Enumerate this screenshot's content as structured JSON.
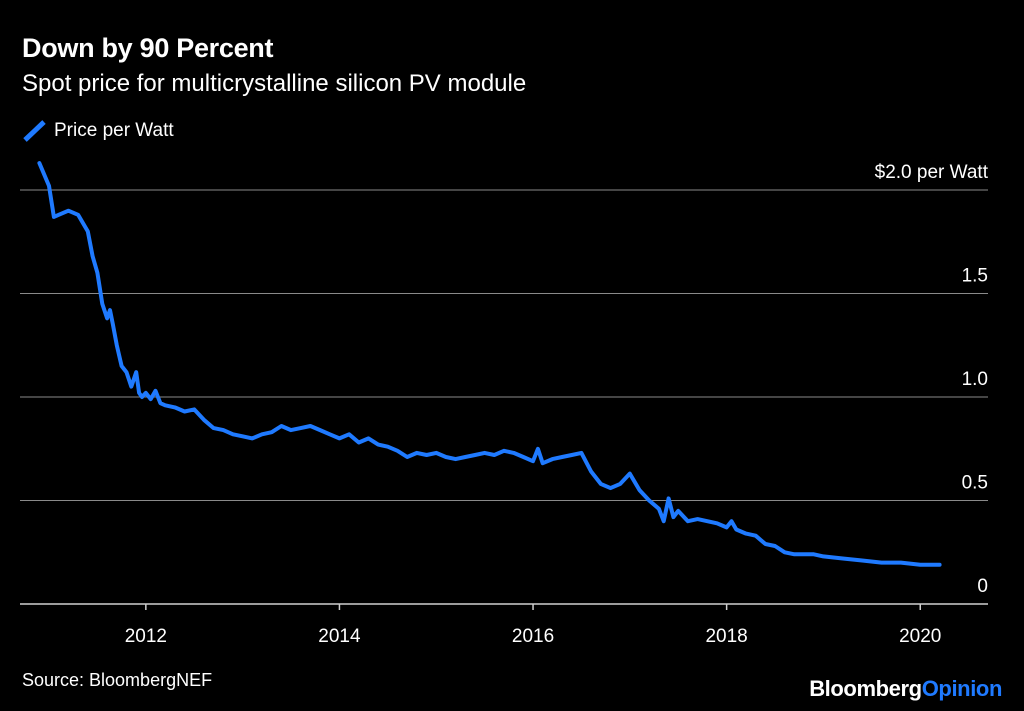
{
  "header": {
    "title": "Down by 90 Percent",
    "subtitle": "Spot price for multicrystalline silicon PV module"
  },
  "legend": {
    "label": "Price per Watt"
  },
  "footer": {
    "source": "Source: BloombergNEF",
    "brand_part1": "Bloomberg",
    "brand_part2": "Opinion"
  },
  "colors": {
    "background": "#000000",
    "line": "#1f7aff",
    "grid": "#8a8a8a"
  },
  "chart_data": {
    "type": "line",
    "title": "Down by 90 Percent",
    "subtitle": "Spot price for multicrystalline silicon PV module",
    "xlabel": "",
    "ylabel": "",
    "xlim": [
      2010.7,
      2020.7
    ],
    "ylim": [
      0,
      2.0
    ],
    "x_ticks": [
      2012,
      2014,
      2016,
      2018,
      2020
    ],
    "x_tick_labels": [
      "2012",
      "2014",
      "2016",
      "2018",
      "2020"
    ],
    "y_ticks": [
      0,
      0.5,
      1.0,
      1.5,
      2.0
    ],
    "y_tick_labels": [
      "0",
      "0.5",
      "1.0",
      "1.5",
      "$2.0 per Watt"
    ],
    "grid": "horizontal",
    "legend_position": "top-left",
    "series": [
      {
        "name": "Price per Watt",
        "color": "#1f7aff",
        "x": [
          2010.9,
          2011.0,
          2011.05,
          2011.1,
          2011.2,
          2011.3,
          2011.4,
          2011.45,
          2011.5,
          2011.55,
          2011.6,
          2011.63,
          2011.66,
          2011.7,
          2011.75,
          2011.8,
          2011.85,
          2011.9,
          2011.93,
          2011.96,
          2012.0,
          2012.05,
          2012.1,
          2012.15,
          2012.2,
          2012.3,
          2012.4,
          2012.5,
          2012.6,
          2012.7,
          2012.8,
          2012.9,
          2013.0,
          2013.1,
          2013.2,
          2013.3,
          2013.4,
          2013.5,
          2013.6,
          2013.7,
          2013.8,
          2013.9,
          2014.0,
          2014.1,
          2014.2,
          2014.3,
          2014.4,
          2014.5,
          2014.6,
          2014.7,
          2014.8,
          2014.9,
          2015.0,
          2015.1,
          2015.2,
          2015.3,
          2015.4,
          2015.5,
          2015.6,
          2015.7,
          2015.8,
          2015.9,
          2016.0,
          2016.05,
          2016.1,
          2016.2,
          2016.3,
          2016.4,
          2016.5,
          2016.6,
          2016.7,
          2016.8,
          2016.9,
          2017.0,
          2017.1,
          2017.2,
          2017.3,
          2017.35,
          2017.4,
          2017.45,
          2017.5,
          2017.6,
          2017.7,
          2017.8,
          2017.9,
          2018.0,
          2018.05,
          2018.1,
          2018.2,
          2018.3,
          2018.4,
          2018.5,
          2018.6,
          2018.7,
          2018.8,
          2018.9,
          2019.0,
          2019.2,
          2019.4,
          2019.6,
          2019.8,
          2020.0,
          2020.2
        ],
        "values": [
          2.13,
          2.02,
          1.87,
          1.88,
          1.9,
          1.88,
          1.8,
          1.68,
          1.6,
          1.45,
          1.38,
          1.42,
          1.35,
          1.25,
          1.15,
          1.12,
          1.05,
          1.12,
          1.02,
          1.0,
          1.02,
          0.99,
          1.03,
          0.97,
          0.96,
          0.95,
          0.93,
          0.94,
          0.89,
          0.85,
          0.84,
          0.82,
          0.81,
          0.8,
          0.82,
          0.83,
          0.86,
          0.84,
          0.85,
          0.86,
          0.84,
          0.82,
          0.8,
          0.82,
          0.78,
          0.8,
          0.77,
          0.76,
          0.74,
          0.71,
          0.73,
          0.72,
          0.73,
          0.71,
          0.7,
          0.71,
          0.72,
          0.73,
          0.72,
          0.74,
          0.73,
          0.71,
          0.69,
          0.75,
          0.68,
          0.7,
          0.71,
          0.72,
          0.73,
          0.64,
          0.58,
          0.56,
          0.58,
          0.63,
          0.55,
          0.5,
          0.46,
          0.4,
          0.51,
          0.42,
          0.45,
          0.4,
          0.41,
          0.4,
          0.39,
          0.37,
          0.4,
          0.36,
          0.34,
          0.33,
          0.29,
          0.28,
          0.25,
          0.24,
          0.24,
          0.24,
          0.23,
          0.22,
          0.21,
          0.2,
          0.2,
          0.19,
          0.19
        ]
      }
    ]
  }
}
